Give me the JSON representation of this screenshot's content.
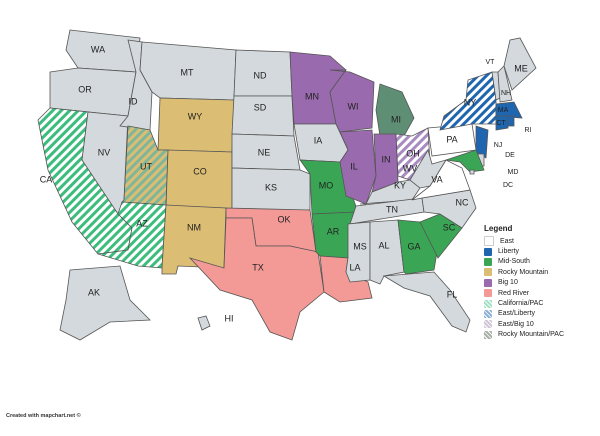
{
  "legend": {
    "title": "Legend",
    "items": [
      {
        "label": "East",
        "color": "#ffffff",
        "pattern": "solid"
      },
      {
        "label": "Liberty",
        "color": "#1f66b0",
        "pattern": "solid"
      },
      {
        "label": "Mid-South",
        "color": "#3aa655",
        "pattern": "solid"
      },
      {
        "label": "Rocky Mountain",
        "color": "#dcbd74",
        "pattern": "solid"
      },
      {
        "label": "Big 10",
        "color": "#9a6aae",
        "pattern": "solid"
      },
      {
        "label": "Red River",
        "color": "#f39a96",
        "pattern": "solid"
      },
      {
        "label": "California/PAC",
        "color": "#a8e0c8",
        "pattern": "hatch"
      },
      {
        "label": "East/Liberty",
        "color": "#8fb3d6",
        "pattern": "hatch"
      },
      {
        "label": "East/Big 10",
        "color": "#cfc6d8",
        "pattern": "hatch"
      },
      {
        "label": "Rocky Mountain/PAC",
        "color": "#a9b0a8",
        "pattern": "hatch"
      }
    ]
  },
  "default_color": "#d3d9dc",
  "states": [
    {
      "abbr": "WA",
      "group": "none"
    },
    {
      "abbr": "OR",
      "group": "none"
    },
    {
      "abbr": "CA",
      "group": "California/PAC"
    },
    {
      "abbr": "NV",
      "group": "none"
    },
    {
      "abbr": "ID",
      "group": "none"
    },
    {
      "abbr": "MT",
      "group": "none"
    },
    {
      "abbr": "WY",
      "group": "Rocky Mountain"
    },
    {
      "abbr": "UT",
      "group": "Rocky Mountain/PAC"
    },
    {
      "abbr": "CO",
      "group": "Rocky Mountain"
    },
    {
      "abbr": "AZ",
      "group": "California/PAC"
    },
    {
      "abbr": "NM",
      "group": "Rocky Mountain"
    },
    {
      "abbr": "ND",
      "group": "none"
    },
    {
      "abbr": "SD",
      "group": "none"
    },
    {
      "abbr": "NE",
      "group": "none"
    },
    {
      "abbr": "KS",
      "group": "none"
    },
    {
      "abbr": "OK",
      "group": "Red River"
    },
    {
      "abbr": "TX",
      "group": "Red River"
    },
    {
      "abbr": "MN",
      "group": "Big 10"
    },
    {
      "abbr": "IA",
      "group": "none"
    },
    {
      "abbr": "MO",
      "group": "Mid-South"
    },
    {
      "abbr": "AR",
      "group": "Mid-South"
    },
    {
      "abbr": "LA",
      "group": "Red River"
    },
    {
      "abbr": "WI",
      "group": "Big 10"
    },
    {
      "abbr": "IL",
      "group": "Big 10"
    },
    {
      "abbr": "MI",
      "group": "MI"
    },
    {
      "abbr": "IN",
      "group": "Big 10"
    },
    {
      "abbr": "OH",
      "group": "East/Big 10"
    },
    {
      "abbr": "KY",
      "group": "none"
    },
    {
      "abbr": "TN",
      "group": "none"
    },
    {
      "abbr": "MS",
      "group": "none"
    },
    {
      "abbr": "AL",
      "group": "none"
    },
    {
      "abbr": "GA",
      "group": "Mid-South"
    },
    {
      "abbr": "FL",
      "group": "none"
    },
    {
      "abbr": "SC",
      "group": "Mid-South"
    },
    {
      "abbr": "NC",
      "group": "none"
    },
    {
      "abbr": "VA",
      "group": "East"
    },
    {
      "abbr": "WV",
      "group": "none"
    },
    {
      "abbr": "PA",
      "group": "East"
    },
    {
      "abbr": "NY",
      "group": "East/Liberty"
    },
    {
      "abbr": "NJ",
      "group": "Liberty"
    },
    {
      "abbr": "MA",
      "group": "Liberty"
    },
    {
      "abbr": "CT",
      "group": "Liberty"
    },
    {
      "abbr": "VT",
      "group": "none"
    },
    {
      "abbr": "NH",
      "group": "none"
    },
    {
      "abbr": "ME",
      "group": "none"
    },
    {
      "abbr": "RI",
      "group": "Liberty"
    },
    {
      "abbr": "DE",
      "group": "none"
    },
    {
      "abbr": "MD",
      "group": "Mid-South"
    },
    {
      "abbr": "DC",
      "group": "none"
    },
    {
      "abbr": "AK",
      "group": "none"
    },
    {
      "abbr": "HI",
      "group": "none"
    }
  ],
  "group_colors": {
    "MI": "#5e8f74"
  },
  "credit": "Created with mapchart.net ©"
}
